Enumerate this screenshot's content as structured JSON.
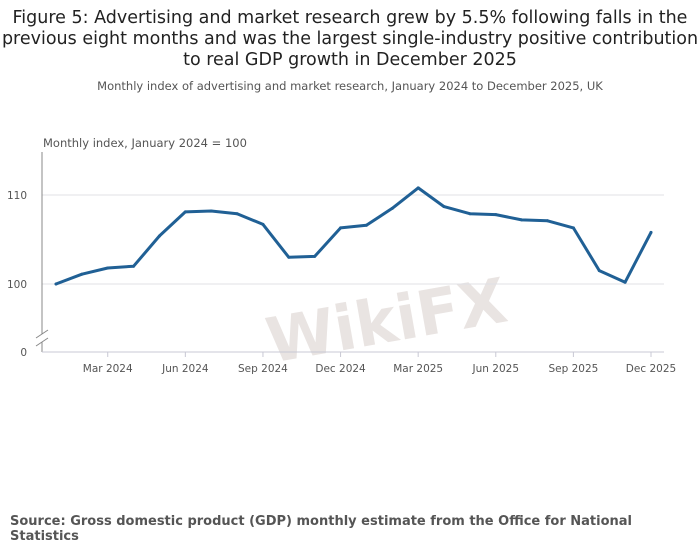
{
  "title": "Figure 5: Advertising and market research grew by 5.5% following falls in the previous eight months and was the largest single-industry positive contribution to real GDP growth in December 2025",
  "subtitle": "Monthly index of advertising and market research, January 2024 to December 2025, UK",
  "source": "Source: Gross domestic product (GDP) monthly estimate from the Office for National Statistics",
  "watermark": "WikiFX",
  "chart_data": {
    "type": "line",
    "title": "",
    "ylabel": "Monthly index, January 2024 = 100",
    "xlabel": "",
    "y_ticks": [
      0,
      100,
      110
    ],
    "y_axis_break": true,
    "ylim_visible": [
      97,
      112
    ],
    "grid": true,
    "line_color": "#206095",
    "x_tick_labels": [
      "Mar 2024",
      "Jun 2024",
      "Sep 2024",
      "Dec 2024",
      "Mar 2025",
      "Jun 2025",
      "Sep 2025",
      "Dec 2025"
    ],
    "x_tick_indices": [
      2,
      5,
      8,
      11,
      14,
      17,
      20,
      23
    ],
    "x": [
      "Jan 2024",
      "Feb 2024",
      "Mar 2024",
      "Apr 2024",
      "May 2024",
      "Jun 2024",
      "Jul 2024",
      "Aug 2024",
      "Sep 2024",
      "Oct 2024",
      "Nov 2024",
      "Dec 2024",
      "Jan 2025",
      "Feb 2025",
      "Mar 2025",
      "Apr 2025",
      "May 2025",
      "Jun 2025",
      "Jul 2025",
      "Aug 2025",
      "Sep 2025",
      "Oct 2025",
      "Nov 2025",
      "Dec 2025"
    ],
    "values": [
      100.0,
      101.1,
      101.8,
      102.0,
      105.4,
      108.1,
      108.2,
      107.9,
      106.7,
      103.0,
      103.1,
      106.3,
      106.6,
      108.5,
      110.8,
      108.7,
      107.9,
      107.8,
      107.2,
      107.1,
      106.3,
      101.5,
      100.2,
      105.8
    ]
  }
}
